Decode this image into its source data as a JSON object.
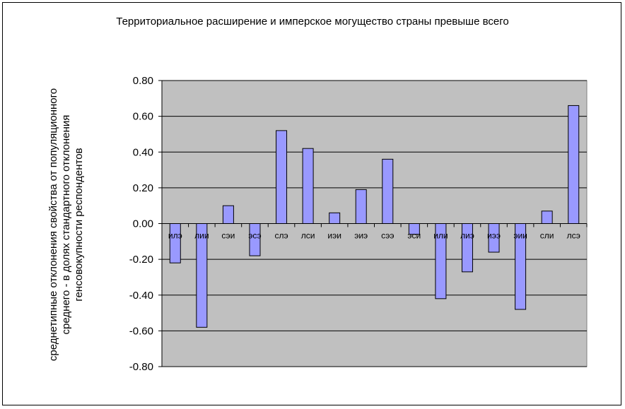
{
  "chart_data": {
    "type": "bar",
    "title": "Территориальное расширение и имперское могущество страны превыше всего",
    "ylabel_lines": [
      "среднетипные отклонения свойства от популяционного",
      "среднего - в долях стандартного отклонения",
      "генсовокупности респондентов"
    ],
    "xlabel": "",
    "categories": [
      "илэ",
      "лии",
      "сэи",
      "эсэ",
      "слэ",
      "лси",
      "иэи",
      "эиэ",
      "сээ",
      "эси",
      "или",
      "лиэ",
      "иээ",
      "эии",
      "сли",
      "лсэ"
    ],
    "values": [
      -0.22,
      -0.58,
      0.1,
      -0.18,
      0.52,
      0.42,
      0.06,
      0.19,
      0.36,
      -0.06,
      -0.42,
      -0.27,
      -0.16,
      -0.48,
      0.07,
      0.66
    ],
    "ylim": [
      -0.8,
      0.8
    ],
    "yticks": [
      "0.80",
      "0.60",
      "0.40",
      "0.20",
      "0.00",
      "-0.20",
      "-0.40",
      "-0.60",
      "-0.80"
    ],
    "grid": true,
    "legend": "none",
    "colors": {
      "bar": "#9999ff",
      "plot_bg": "#c0c0c0",
      "gridline": "#000000",
      "bar_stroke": "#000000"
    }
  }
}
